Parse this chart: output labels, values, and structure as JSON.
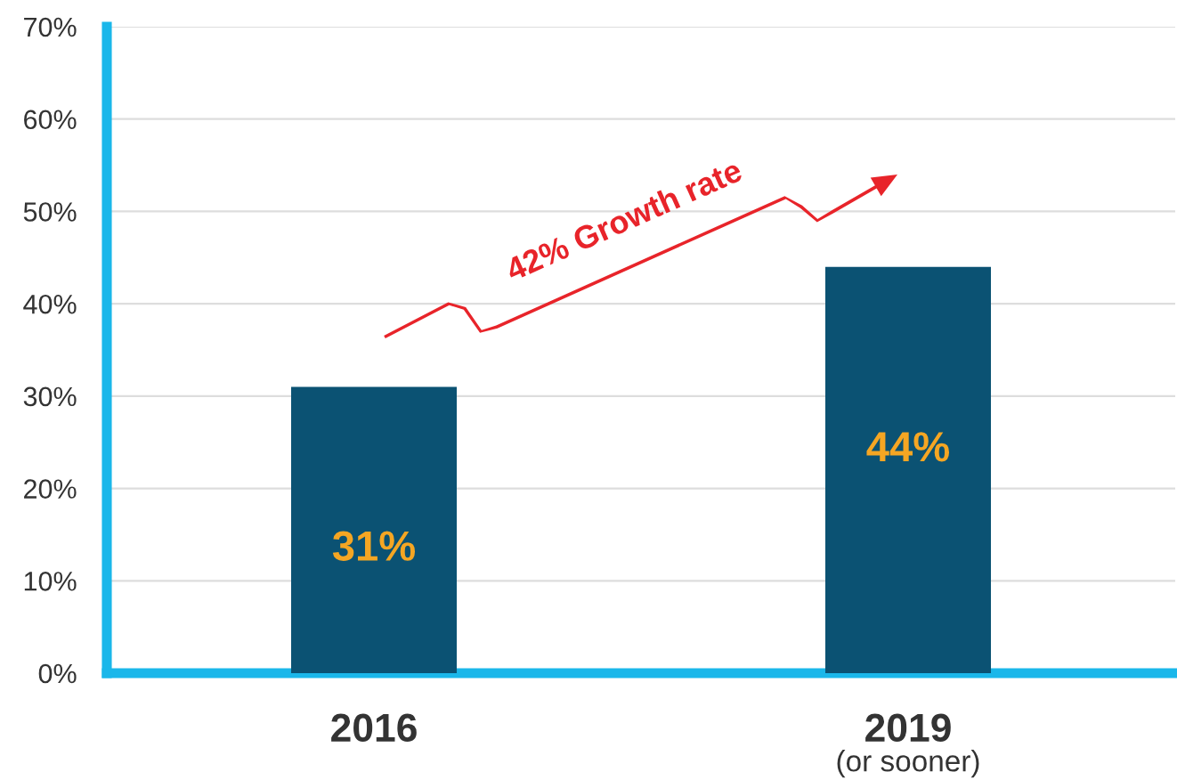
{
  "chart_data": {
    "type": "bar",
    "categories": [
      "2016",
      "2019"
    ],
    "values": [
      31,
      44
    ],
    "color": "#0b5273",
    "data_labels": true,
    "value_labels": [
      "31%",
      "44%"
    ],
    "ylim": [
      0,
      70
    ],
    "yticks": [
      {
        "value": 0,
        "label": "0%"
      },
      {
        "value": 10,
        "label": "10%"
      },
      {
        "value": 20,
        "label": "20%"
      },
      {
        "value": 30,
        "label": "30%"
      },
      {
        "value": 40,
        "label": "40%"
      },
      {
        "value": 50,
        "label": "50%"
      },
      {
        "value": 60,
        "label": "60%"
      },
      {
        "value": 70,
        "label": "70%"
      }
    ],
    "grid": "y",
    "annotations": [
      "42% Growth rate",
      "(or sooner)"
    ]
  }
}
